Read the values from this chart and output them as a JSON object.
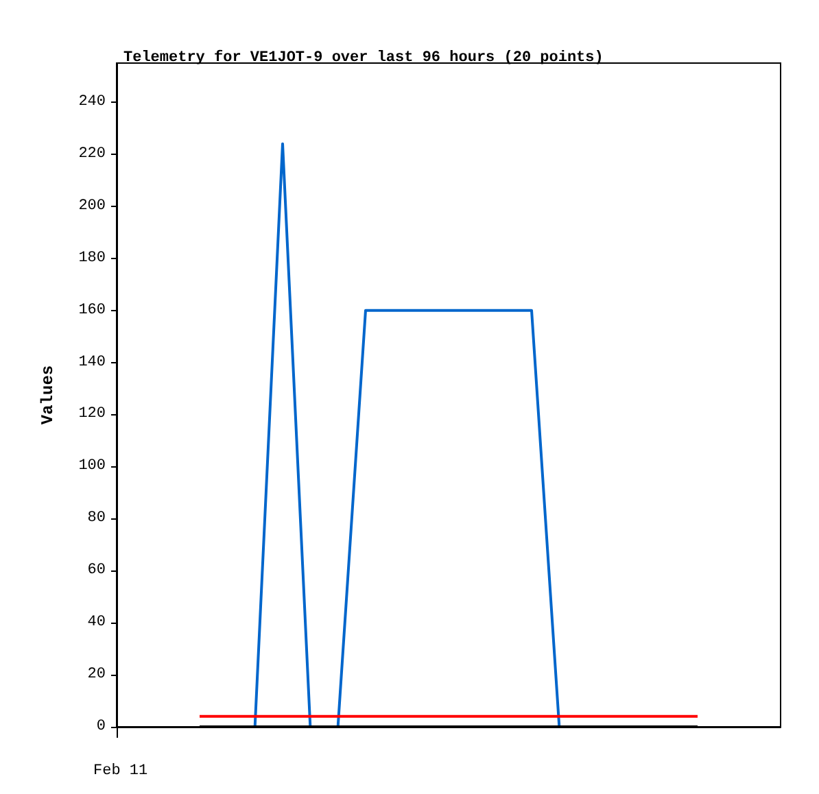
{
  "chart_data": {
    "type": "line",
    "title": "Telemetry for VE1JOT-9 over last 96 hours (20 points)",
    "ylabel": "Values",
    "annotations": [
      "Feb 11"
    ],
    "categories": [
      null,
      null,
      null,
      null,
      null,
      null,
      null,
      null,
      null,
      null,
      null,
      null,
      null,
      null,
      null,
      null,
      null,
      null,
      null,
      null,
      null,
      null,
      null,
      null,
      null
    ],
    "ylim": [
      0,
      255
    ],
    "yticks": [
      0,
      20,
      40,
      60,
      80,
      100,
      120,
      140,
      160,
      180,
      200,
      220,
      240
    ],
    "line_style": "solid",
    "series": [
      {
        "color": "#000000",
        "values": [
          null,
          null,
          null,
          0,
          0,
          0,
          0,
          0,
          0,
          0,
          0,
          0,
          0,
          0,
          0,
          0,
          0,
          0,
          0,
          0,
          0,
          0,
          null,
          null,
          null
        ]
      },
      {
        "color": "#ff0000",
        "values": [
          null,
          null,
          null,
          4,
          4,
          4,
          4,
          4,
          4,
          4,
          4,
          4,
          4,
          4,
          4,
          4,
          4,
          4,
          4,
          4,
          4,
          4,
          null,
          null,
          null
        ]
      },
      {
        "color": "#0066cc",
        "values": [
          null,
          null,
          null,
          null,
          null,
          0,
          224,
          0,
          0,
          160,
          160,
          160,
          160,
          160,
          160,
          160,
          0,
          null,
          null,
          null,
          null,
          null,
          null,
          null,
          null
        ]
      }
    ]
  }
}
